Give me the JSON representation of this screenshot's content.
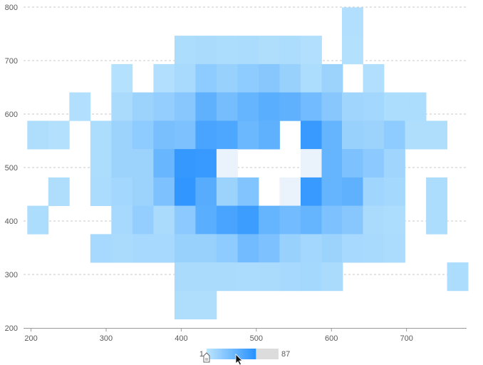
{
  "chart_data": {
    "type": "heatmap",
    "title": "",
    "xlabel": "",
    "ylabel": "",
    "xlim": [
      190,
      780
    ],
    "ylim": [
      200,
      800
    ],
    "x_ticks": [
      200,
      300,
      400,
      500,
      600,
      700
    ],
    "y_ticks": [
      200,
      300,
      400,
      500,
      600,
      700,
      800
    ],
    "grid": "horizontal dashed",
    "cell_width": 28,
    "cell_height": 53,
    "colors": {
      "low": "#bde6fd",
      "high": "#2891ff",
      "empty": "#ffffff",
      "grid": "#c8c8c8",
      "axis": "#9a9a9a",
      "slider_track": "#dcdcdc"
    },
    "legend": {
      "min_label": "1",
      "max_label": "87",
      "handle_value": 60
    },
    "cells": [
      {
        "x": 628,
        "y": 773,
        "v": 8
      },
      {
        "x": 405,
        "y": 720,
        "v": 10
      },
      {
        "x": 433,
        "y": 720,
        "v": 12
      },
      {
        "x": 461,
        "y": 720,
        "v": 10
      },
      {
        "x": 489,
        "y": 720,
        "v": 11
      },
      {
        "x": 517,
        "y": 720,
        "v": 9
      },
      {
        "x": 545,
        "y": 720,
        "v": 10
      },
      {
        "x": 573,
        "y": 720,
        "v": 8
      },
      {
        "x": 628,
        "y": 720,
        "v": 7
      },
      {
        "x": 321,
        "y": 667,
        "v": 6
      },
      {
        "x": 377,
        "y": 667,
        "v": 8
      },
      {
        "x": 405,
        "y": 667,
        "v": 13
      },
      {
        "x": 433,
        "y": 667,
        "v": 28
      },
      {
        "x": 461,
        "y": 667,
        "v": 22
      },
      {
        "x": 489,
        "y": 667,
        "v": 28
      },
      {
        "x": 517,
        "y": 667,
        "v": 32
      },
      {
        "x": 545,
        "y": 667,
        "v": 22
      },
      {
        "x": 573,
        "y": 667,
        "v": 10
      },
      {
        "x": 601,
        "y": 667,
        "v": 20
      },
      {
        "x": 656,
        "y": 667,
        "v": 8
      },
      {
        "x": 265,
        "y": 614,
        "v": 8
      },
      {
        "x": 321,
        "y": 614,
        "v": 12
      },
      {
        "x": 349,
        "y": 614,
        "v": 20
      },
      {
        "x": 377,
        "y": 614,
        "v": 25
      },
      {
        "x": 405,
        "y": 614,
        "v": 32
      },
      {
        "x": 433,
        "y": 614,
        "v": 55
      },
      {
        "x": 461,
        "y": 614,
        "v": 42
      },
      {
        "x": 489,
        "y": 614,
        "v": 52
      },
      {
        "x": 517,
        "y": 614,
        "v": 58
      },
      {
        "x": 545,
        "y": 614,
        "v": 55
      },
      {
        "x": 573,
        "y": 614,
        "v": 45
      },
      {
        "x": 601,
        "y": 614,
        "v": 32
      },
      {
        "x": 628,
        "y": 614,
        "v": 18
      },
      {
        "x": 656,
        "y": 614,
        "v": 16
      },
      {
        "x": 684,
        "y": 614,
        "v": 10
      },
      {
        "x": 712,
        "y": 614,
        "v": 10
      },
      {
        "x": 209,
        "y": 561,
        "v": 9
      },
      {
        "x": 237,
        "y": 561,
        "v": 7
      },
      {
        "x": 293,
        "y": 561,
        "v": 10
      },
      {
        "x": 321,
        "y": 561,
        "v": 20
      },
      {
        "x": 349,
        "y": 561,
        "v": 28
      },
      {
        "x": 377,
        "y": 561,
        "v": 40
      },
      {
        "x": 405,
        "y": 561,
        "v": 38
      },
      {
        "x": 433,
        "y": 561,
        "v": 68
      },
      {
        "x": 461,
        "y": 561,
        "v": 65
      },
      {
        "x": 489,
        "y": 561,
        "v": 48
      },
      {
        "x": 517,
        "y": 561,
        "v": 55
      },
      {
        "x": 573,
        "y": 561,
        "v": 78
      },
      {
        "x": 601,
        "y": 561,
        "v": 52
      },
      {
        "x": 628,
        "y": 561,
        "v": 22
      },
      {
        "x": 656,
        "y": 561,
        "v": 20
      },
      {
        "x": 684,
        "y": 561,
        "v": 28
      },
      {
        "x": 712,
        "y": 561,
        "v": 9
      },
      {
        "x": 740,
        "y": 561,
        "v": 9
      },
      {
        "x": 293,
        "y": 508,
        "v": 10
      },
      {
        "x": 321,
        "y": 508,
        "v": 20
      },
      {
        "x": 349,
        "y": 508,
        "v": 20
      },
      {
        "x": 377,
        "y": 508,
        "v": 50
      },
      {
        "x": 405,
        "y": 508,
        "v": 80
      },
      {
        "x": 433,
        "y": 508,
        "v": 78
      },
      {
        "x": 461,
        "y": 508,
        "v": 1
      },
      {
        "x": 573,
        "y": 508,
        "v": 1
      },
      {
        "x": 601,
        "y": 508,
        "v": 52
      },
      {
        "x": 628,
        "y": 508,
        "v": 38
      },
      {
        "x": 656,
        "y": 508,
        "v": 30
      },
      {
        "x": 684,
        "y": 508,
        "v": 18
      },
      {
        "x": 237,
        "y": 455,
        "v": 9
      },
      {
        "x": 293,
        "y": 455,
        "v": 11
      },
      {
        "x": 321,
        "y": 455,
        "v": 16
      },
      {
        "x": 349,
        "y": 455,
        "v": 20
      },
      {
        "x": 377,
        "y": 455,
        "v": 38
      },
      {
        "x": 405,
        "y": 455,
        "v": 82
      },
      {
        "x": 433,
        "y": 455,
        "v": 60
      },
      {
        "x": 461,
        "y": 455,
        "v": 20
      },
      {
        "x": 489,
        "y": 455,
        "v": 35
      },
      {
        "x": 545,
        "y": 455,
        "v": 1
      },
      {
        "x": 573,
        "y": 455,
        "v": 78
      },
      {
        "x": 601,
        "y": 455,
        "v": 52
      },
      {
        "x": 628,
        "y": 455,
        "v": 55
      },
      {
        "x": 656,
        "y": 455,
        "v": 18
      },
      {
        "x": 684,
        "y": 455,
        "v": 15
      },
      {
        "x": 740,
        "y": 455,
        "v": 10
      },
      {
        "x": 209,
        "y": 402,
        "v": 10
      },
      {
        "x": 321,
        "y": 402,
        "v": 14
      },
      {
        "x": 349,
        "y": 402,
        "v": 25
      },
      {
        "x": 377,
        "y": 402,
        "v": 12
      },
      {
        "x": 405,
        "y": 402,
        "v": 30
      },
      {
        "x": 433,
        "y": 402,
        "v": 58
      },
      {
        "x": 461,
        "y": 402,
        "v": 68
      },
      {
        "x": 489,
        "y": 402,
        "v": 75
      },
      {
        "x": 517,
        "y": 402,
        "v": 52
      },
      {
        "x": 545,
        "y": 402,
        "v": 45
      },
      {
        "x": 573,
        "y": 402,
        "v": 52
      },
      {
        "x": 601,
        "y": 402,
        "v": 38
      },
      {
        "x": 628,
        "y": 402,
        "v": 32
      },
      {
        "x": 656,
        "y": 402,
        "v": 12
      },
      {
        "x": 684,
        "y": 402,
        "v": 10
      },
      {
        "x": 740,
        "y": 402,
        "v": 10
      },
      {
        "x": 293,
        "y": 349,
        "v": 14
      },
      {
        "x": 321,
        "y": 349,
        "v": 12
      },
      {
        "x": 349,
        "y": 349,
        "v": 14
      },
      {
        "x": 377,
        "y": 349,
        "v": 14
      },
      {
        "x": 405,
        "y": 349,
        "v": 22
      },
      {
        "x": 433,
        "y": 349,
        "v": 22
      },
      {
        "x": 461,
        "y": 349,
        "v": 28
      },
      {
        "x": 489,
        "y": 349,
        "v": 45
      },
      {
        "x": 517,
        "y": 349,
        "v": 38
      },
      {
        "x": 545,
        "y": 349,
        "v": 22
      },
      {
        "x": 573,
        "y": 349,
        "v": 16
      },
      {
        "x": 601,
        "y": 349,
        "v": 20
      },
      {
        "x": 628,
        "y": 349,
        "v": 14
      },
      {
        "x": 656,
        "y": 349,
        "v": 13
      },
      {
        "x": 684,
        "y": 349,
        "v": 11
      },
      {
        "x": 405,
        "y": 296,
        "v": 12
      },
      {
        "x": 433,
        "y": 296,
        "v": 12
      },
      {
        "x": 461,
        "y": 296,
        "v": 12
      },
      {
        "x": 489,
        "y": 296,
        "v": 11
      },
      {
        "x": 517,
        "y": 296,
        "v": 12
      },
      {
        "x": 545,
        "y": 296,
        "v": 14
      },
      {
        "x": 573,
        "y": 296,
        "v": 15
      },
      {
        "x": 601,
        "y": 296,
        "v": 12
      },
      {
        "x": 768,
        "y": 296,
        "v": 10
      },
      {
        "x": 405,
        "y": 243,
        "v": 9
      },
      {
        "x": 433,
        "y": 243,
        "v": 9
      }
    ]
  }
}
